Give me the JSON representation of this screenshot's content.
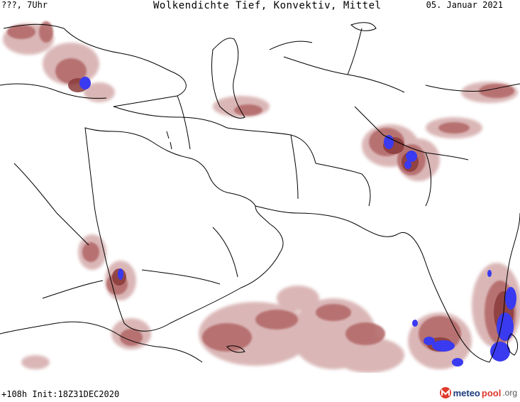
{
  "header": {
    "left_label": "???, 7Uhr",
    "title": "Wolkendichte  Tief, Konvektiv, Mittel",
    "date": "05. Januar 2021"
  },
  "footer": {
    "run_info": "+108h Init:18Z31DEC2020",
    "brand": {
      "part1": "meteo",
      "part2": "pool",
      "tld": ".org"
    }
  },
  "colors": {
    "cloud_light": "#d9b3b3",
    "cloud_medium": "#b46a6a",
    "cloud_dark": "#8b3a3a",
    "convective": "#3a3af0",
    "border": "#000000"
  },
  "legend_icons": [
    "meteopool-logo-icon"
  ]
}
